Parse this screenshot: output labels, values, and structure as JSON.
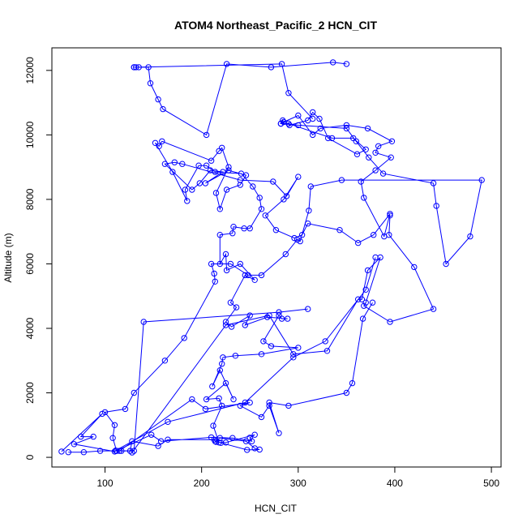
{
  "chart_data": {
    "type": "line",
    "title": "ATOM4 Northeast_Pacific_2 HCN_CIT",
    "xlabel": "HCN_CIT",
    "ylabel": "Altitude (m)",
    "xlim": [
      45,
      510
    ],
    "ylim": [
      -300,
      12700
    ],
    "xticks": [
      100,
      200,
      300,
      400,
      500
    ],
    "yticks": [
      0,
      2000,
      4000,
      6000,
      8000,
      10000,
      12000
    ],
    "grid": false,
    "legend": "none",
    "colors": {
      "series": "#0000ff",
      "axes": "#000000"
    },
    "series": [
      {
        "marker": "open-circle",
        "points": [
          [
            55,
            180
          ],
          [
            97,
            1350
          ],
          [
            75,
            640
          ],
          [
            88,
            640
          ],
          [
            68,
            410
          ],
          [
            110,
            180
          ],
          [
            148,
            700
          ],
          [
            158,
            500
          ],
          [
            210,
            620
          ],
          [
            232,
            600
          ],
          [
            252,
            500
          ],
          [
            250,
            610
          ],
          [
            255,
            700
          ],
          [
            225,
            460
          ],
          [
            218,
            460
          ],
          [
            212,
            980
          ],
          [
            221,
            1600
          ],
          [
            218,
            1830
          ],
          [
            205,
            1800
          ],
          [
            225,
            2300
          ],
          [
            233,
            1800
          ],
          [
            219,
            2700
          ],
          [
            211,
            2200
          ],
          [
            221,
            2900
          ],
          [
            222,
            3100
          ],
          [
            235,
            3150
          ],
          [
            262,
            3200
          ],
          [
            300,
            3400
          ],
          [
            272,
            3450
          ],
          [
            264,
            3600
          ],
          [
            280,
            4400
          ],
          [
            283,
            4300
          ],
          [
            289,
            4300
          ],
          [
            268,
            4350
          ],
          [
            245,
            4100
          ],
          [
            250,
            4400
          ],
          [
            231,
            4050
          ],
          [
            225,
            4200
          ],
          [
            236,
            4650
          ],
          [
            230,
            4800
          ],
          [
            245,
            5650
          ],
          [
            255,
            5500
          ],
          [
            240,
            6000
          ],
          [
            226,
            5800
          ],
          [
            225,
            6300
          ],
          [
            219,
            6000
          ],
          [
            219,
            6900
          ],
          [
            232,
            6950
          ],
          [
            233,
            7150
          ],
          [
            244,
            7100
          ],
          [
            250,
            7100
          ],
          [
            262,
            7700
          ],
          [
            260,
            8050
          ],
          [
            253,
            8400
          ],
          [
            241,
            8800
          ],
          [
            214,
            8850
          ],
          [
            205,
            9050
          ],
          [
            197,
            9050
          ],
          [
            183,
            8300
          ],
          [
            185,
            7950
          ],
          [
            170,
            8850
          ],
          [
            152,
            9750
          ],
          [
            156,
            9650
          ],
          [
            159,
            9800
          ],
          [
            210,
            9200
          ],
          [
            218,
            9500
          ],
          [
            221,
            9600
          ],
          [
            228,
            9000
          ],
          [
            215,
            8200
          ],
          [
            219,
            7700
          ],
          [
            226,
            8300
          ],
          [
            240,
            8450
          ],
          [
            246,
            8750
          ],
          [
            228,
            8900
          ],
          [
            204,
            8500
          ],
          [
            222,
            8850
          ],
          [
            209,
            8900
          ],
          [
            198,
            8500
          ],
          [
            190,
            8300
          ],
          [
            162,
            9100
          ],
          [
            172,
            9150
          ],
          [
            180,
            9100
          ],
          [
            240,
            8600
          ],
          [
            274,
            8550
          ],
          [
            288,
            8100
          ],
          [
            300,
            8700
          ],
          [
            285,
            8000
          ],
          [
            266,
            7500
          ],
          [
            277,
            7050
          ],
          [
            296,
            6800
          ],
          [
            304,
            6900
          ],
          [
            310,
            7250
          ],
          [
            343,
            7050
          ],
          [
            362,
            6650
          ],
          [
            378,
            6900
          ],
          [
            395,
            7550
          ],
          [
            389,
            6850
          ],
          [
            368,
            8050
          ],
          [
            365,
            8550
          ],
          [
            380,
            8900
          ],
          [
            396,
            9300
          ],
          [
            380,
            9450
          ],
          [
            383,
            9650
          ],
          [
            397,
            9800
          ],
          [
            372,
            10200
          ],
          [
            350,
            10300
          ],
          [
            323,
            10200
          ],
          [
            315,
            10000
          ],
          [
            300,
            10600
          ],
          [
            285,
            10400
          ],
          [
            282,
            10350
          ],
          [
            290,
            10350
          ],
          [
            335,
            9900
          ],
          [
            357,
            9900
          ],
          [
            370,
            9550
          ],
          [
            361,
            9400
          ],
          [
            331,
            9900
          ],
          [
            322,
            10500
          ],
          [
            315,
            10700
          ],
          [
            310,
            10450
          ],
          [
            291,
            10300
          ],
          [
            284,
            10450
          ],
          [
            282,
            10350
          ],
          [
            300,
            10300
          ],
          [
            350,
            10200
          ],
          [
            360,
            9800
          ],
          [
            373,
            9300
          ],
          [
            388,
            8800
          ],
          [
            440,
            8500
          ],
          [
            443,
            7800
          ],
          [
            453,
            6000
          ],
          [
            478,
            6850
          ],
          [
            490,
            8600
          ],
          [
            345,
            8600
          ],
          [
            313,
            8400
          ],
          [
            311,
            7650
          ],
          [
            302,
            6700
          ],
          [
            299,
            6750
          ],
          [
            287,
            6300
          ],
          [
            262,
            5650
          ],
          [
            248,
            5650
          ],
          [
            230,
            6000
          ],
          [
            210,
            6000
          ],
          [
            213,
            5700
          ],
          [
            214,
            5450
          ],
          [
            182,
            3700
          ],
          [
            162,
            3000
          ],
          [
            130,
            2000
          ],
          [
            121,
            1500
          ],
          [
            100,
            1400
          ],
          [
            110,
            1000
          ],
          [
            108,
            600
          ],
          [
            112,
            200
          ],
          [
            117,
            200
          ],
          [
            126,
            200
          ],
          [
            128,
            500
          ],
          [
            155,
            350
          ],
          [
            165,
            550
          ],
          [
            213,
            550
          ],
          [
            214,
            500
          ],
          [
            219,
            600
          ],
          [
            246,
            500
          ],
          [
            255,
            280
          ],
          [
            260,
            240
          ],
          [
            247,
            230
          ],
          [
            220,
            450
          ],
          [
            215,
            480
          ]
        ]
      },
      {
        "marker": "open-circle",
        "points": [
          [
            130,
            12100
          ],
          [
            145,
            12100
          ],
          [
            147,
            11600
          ],
          [
            155,
            11100
          ],
          [
            160,
            10800
          ],
          [
            205,
            10000
          ],
          [
            226,
            12200
          ],
          [
            272,
            12100
          ],
          [
            336,
            12250
          ],
          [
            350,
            12200
          ]
        ]
      },
      {
        "marker": "open-circle",
        "points": [
          [
            130,
            12100
          ],
          [
            132,
            12100
          ],
          [
            135,
            12100
          ],
          [
            283,
            12200
          ],
          [
            290,
            11300
          ],
          [
            315,
            10500
          ]
        ]
      },
      {
        "marker": "open-circle",
        "points": [
          [
            62,
            160
          ],
          [
            78,
            160
          ],
          [
            95,
            200
          ],
          [
            130,
            200
          ],
          [
            140,
            4200
          ],
          [
            280,
            4500
          ],
          [
            310,
            4600
          ]
        ]
      },
      {
        "marker": "open-circle",
        "points": [
          [
            128,
            150
          ],
          [
            225,
            4100
          ],
          [
            270,
            4400
          ],
          [
            295,
            3200
          ],
          [
            330,
            3300
          ],
          [
            362,
            4900
          ],
          [
            366,
            4900
          ],
          [
            372,
            5800
          ],
          [
            385,
            6200
          ],
          [
            370,
            4800
          ],
          [
            368,
            4700
          ],
          [
            395,
            4200
          ],
          [
            440,
            4600
          ],
          [
            420,
            5900
          ],
          [
            394,
            6900
          ],
          [
            395,
            7500
          ]
        ]
      },
      {
        "marker": "open-circle",
        "points": [
          [
            115,
            200
          ],
          [
            190,
            1800
          ],
          [
            204,
            1500
          ],
          [
            250,
            1700
          ],
          [
            240,
            1600
          ],
          [
            262,
            1250
          ],
          [
            270,
            1600
          ],
          [
            280,
            750
          ],
          [
            270,
            1700
          ],
          [
            290,
            1600
          ],
          [
            350,
            2000
          ],
          [
            356,
            2300
          ],
          [
            367,
            4300
          ],
          [
            377,
            4800
          ]
        ]
      },
      {
        "marker": "open-circle",
        "points": [
          [
            111,
            210
          ],
          [
            165,
            1100
          ],
          [
            245,
            1700
          ],
          [
            295,
            3100
          ],
          [
            328,
            3600
          ],
          [
            370,
            5200
          ],
          [
            380,
            6200
          ]
        ]
      }
    ]
  }
}
